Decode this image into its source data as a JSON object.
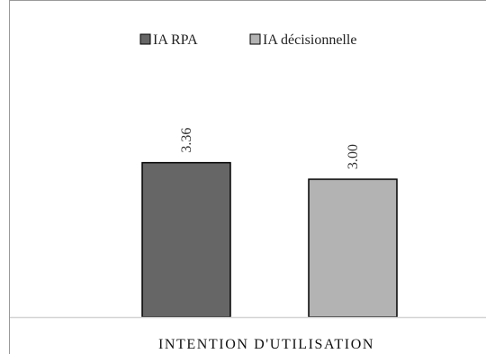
{
  "chart_data": {
    "type": "bar",
    "categories": [
      "INTENTION D'UTILISATION"
    ],
    "series": [
      {
        "name": "IA RPA",
        "values": [
          3.36
        ],
        "label": "3.36",
        "color": "#666666"
      },
      {
        "name": "IA décisionnelle",
        "values": [
          3.0
        ],
        "label": "3.00",
        "color": "#b3b3b3"
      }
    ],
    "ylim": [
      0,
      5
    ],
    "grid": false,
    "legend_position": "top"
  }
}
